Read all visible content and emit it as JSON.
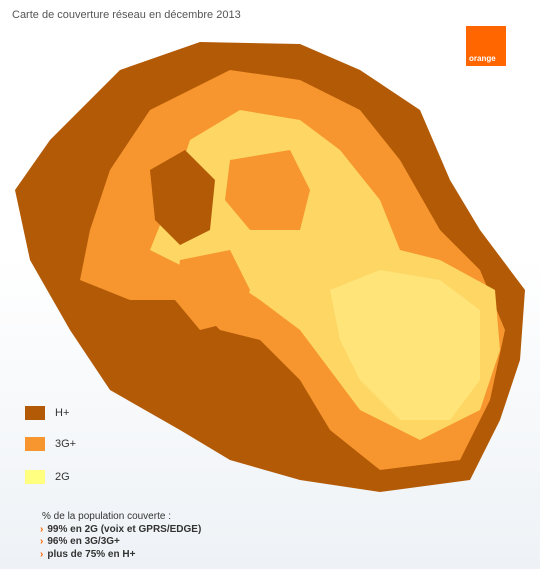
{
  "header": {
    "title": "Carte de couverture réseau en décembre 2013"
  },
  "logo": {
    "text": "orange"
  },
  "legend": {
    "items": [
      {
        "label": "H+",
        "color": "#b35a06"
      },
      {
        "label": "3G+",
        "color": "#f7962f"
      },
      {
        "label": "2G",
        "color": "#ffff80"
      }
    ]
  },
  "coverage": {
    "heading": "% de la population couverte :",
    "items": [
      "99% en 2G (voix et GPRS/EDGE)",
      "96% en 3G/3G+",
      "plus de 75% en H+"
    ]
  }
}
